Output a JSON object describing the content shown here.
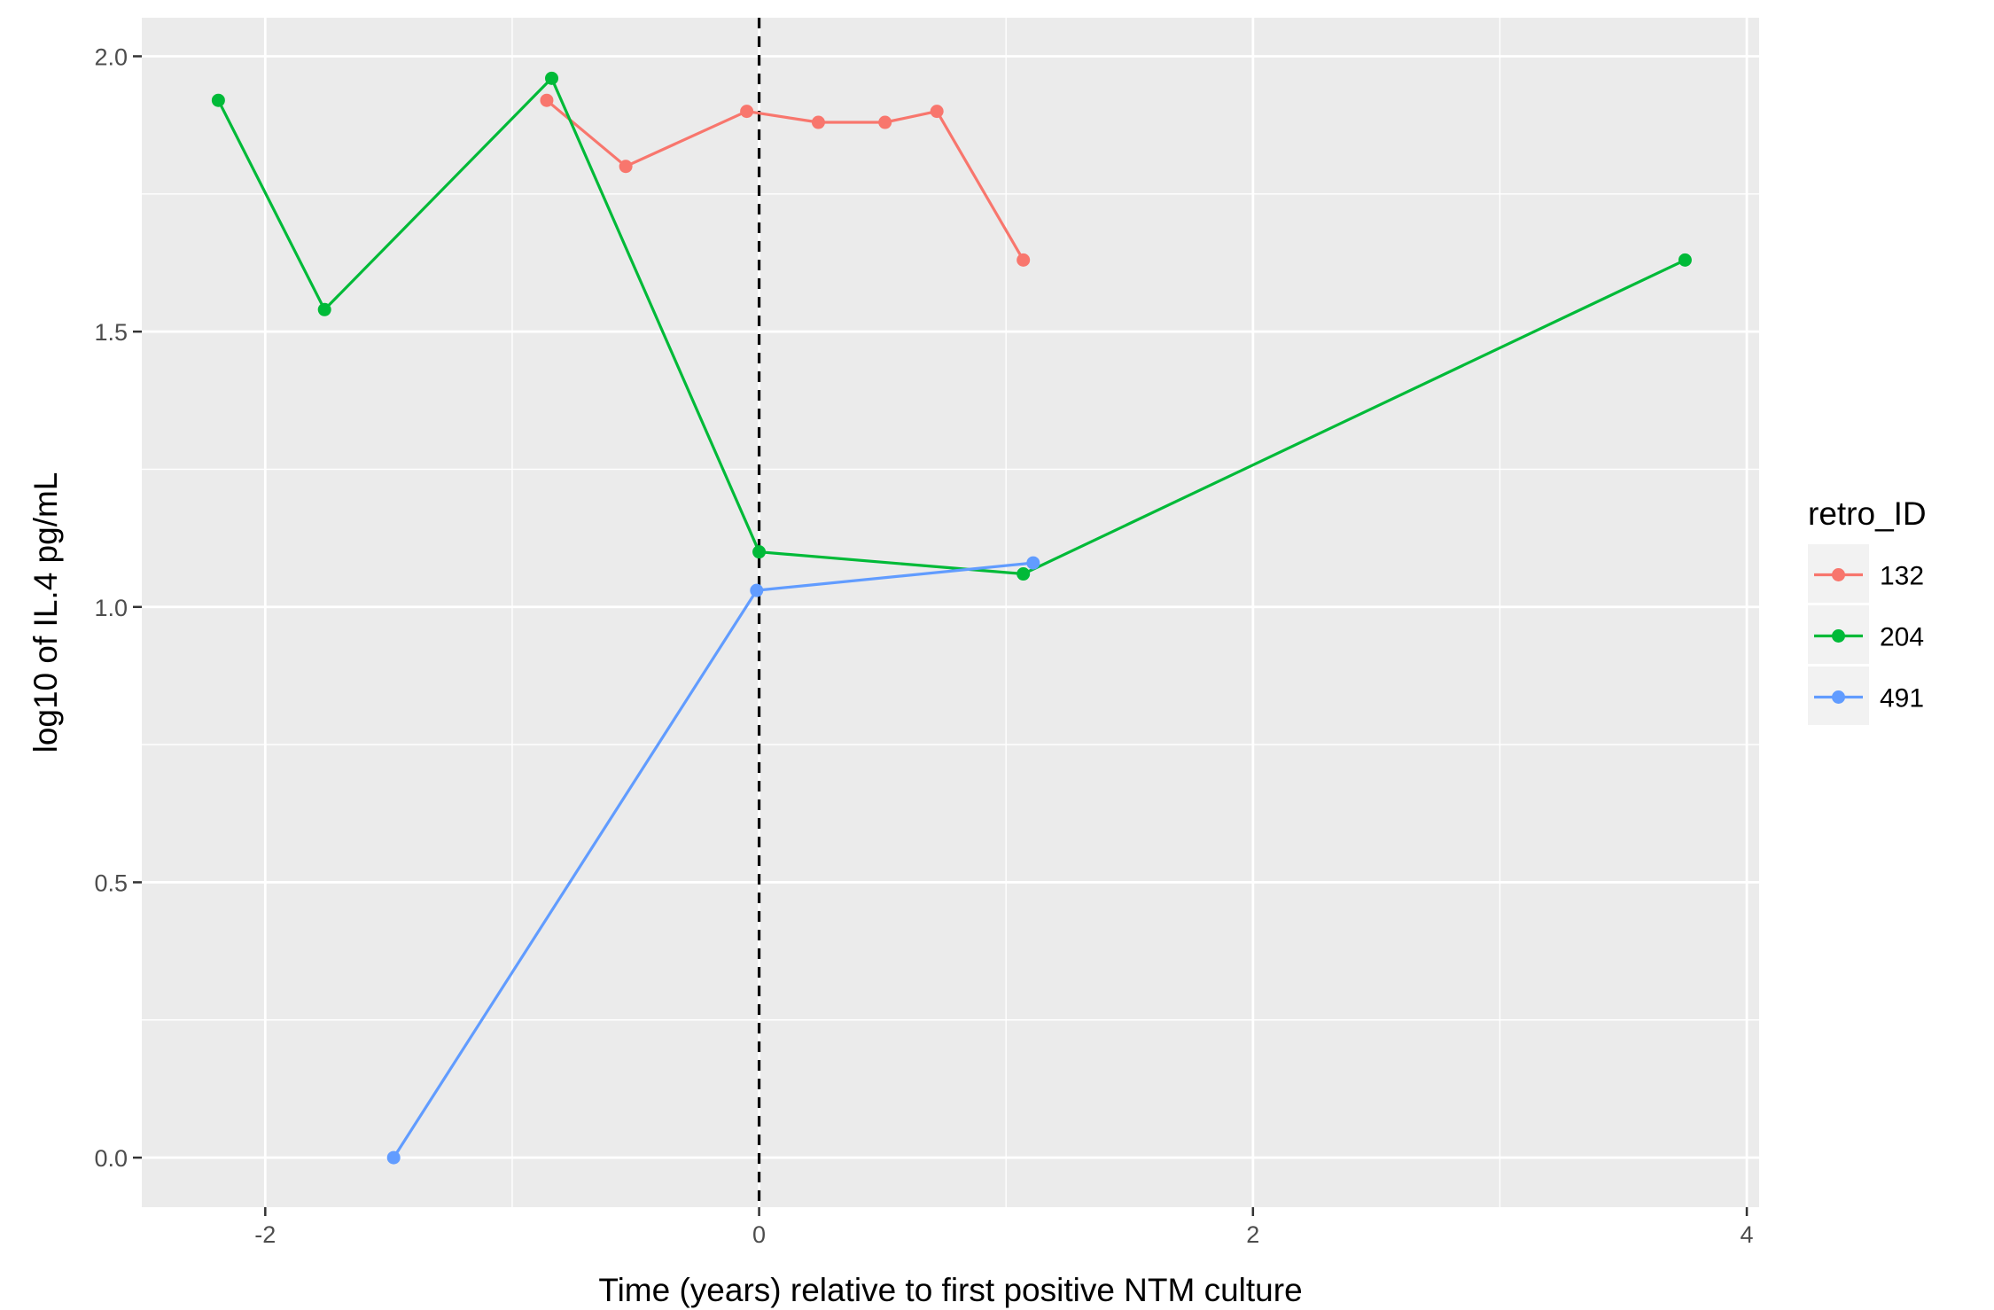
{
  "chart_data": {
    "type": "line",
    "title": "",
    "xlabel": "Time (years) relative to first positive NTM culture",
    "ylabel": "log10 of IL.4 pg/mL",
    "xlim": [
      -2.5,
      4.05
    ],
    "ylim": [
      -0.09,
      2.07
    ],
    "x_ticks": [
      -2,
      0,
      2,
      4
    ],
    "x_tick_labels": [
      "-2",
      "0",
      "2",
      "4"
    ],
    "y_ticks": [
      0,
      0.5,
      1,
      1.5,
      2
    ],
    "y_tick_labels": [
      "0.0",
      "0.5",
      "1.0",
      "1.5",
      "2.0"
    ],
    "grid": true,
    "background": "#ebebeb",
    "reference_line": {
      "x": 0,
      "style": "dashed",
      "color": "#000000"
    },
    "legend": {
      "title": "retro_ID",
      "position": "right"
    },
    "series": [
      {
        "name": "132",
        "color": "#f8766d",
        "points": [
          {
            "x": -0.86,
            "y": 1.92
          },
          {
            "x": -0.54,
            "y": 1.8
          },
          {
            "x": -0.05,
            "y": 1.9
          },
          {
            "x": 0.24,
            "y": 1.88
          },
          {
            "x": 0.51,
            "y": 1.88
          },
          {
            "x": 0.72,
            "y": 1.9
          },
          {
            "x": 1.07,
            "y": 1.63
          }
        ]
      },
      {
        "name": "204",
        "color": "#00ba38",
        "points": [
          {
            "x": -2.19,
            "y": 1.92
          },
          {
            "x": -1.76,
            "y": 1.54
          },
          {
            "x": -0.84,
            "y": 1.96
          },
          {
            "x": 0.0,
            "y": 1.1
          },
          {
            "x": 1.07,
            "y": 1.06
          },
          {
            "x": 3.75,
            "y": 1.63
          }
        ]
      },
      {
        "name": "491",
        "color": "#619cff",
        "points": [
          {
            "x": -1.48,
            "y": 0.0
          },
          {
            "x": -0.01,
            "y": 1.03
          },
          {
            "x": 1.11,
            "y": 1.08
          }
        ]
      }
    ]
  }
}
